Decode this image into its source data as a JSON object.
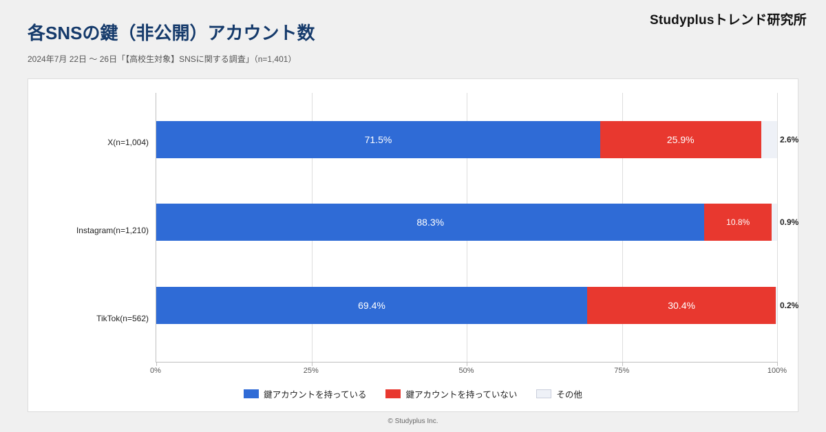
{
  "brand": "Studyplusトレンド研究所",
  "title": "各SNSの鍵（非公開）アカウント数",
  "subtitle": "2024年7月 22日 ～ 26日「【高校生対象】SNSに関する調査」（n=1,401）",
  "footer": "© Studyplus Inc.",
  "chart": {
    "type": "stacked-horizontal-bar",
    "background_color": "#ffffff",
    "grid_color": "#dddddd",
    "axis_color": "#bfbfbf",
    "xlim": [
      0,
      100
    ],
    "xtick_step": 25,
    "xticks": [
      {
        "pos": 0,
        "label": "0%"
      },
      {
        "pos": 25,
        "label": "25%"
      },
      {
        "pos": 50,
        "label": "50%"
      },
      {
        "pos": 75,
        "label": "75%"
      },
      {
        "pos": 100,
        "label": "100%"
      }
    ],
    "series_colors": {
      "has_locked": "#2f6bd6",
      "no_locked": "#e8382f",
      "other": "#eef1f7"
    },
    "rows": [
      {
        "label": "X(n=1,004)",
        "segments": [
          {
            "key": "has_locked",
            "value": 71.5,
            "text": "71.5%",
            "text_inside": true
          },
          {
            "key": "no_locked",
            "value": 25.9,
            "text": "25.9%",
            "text_inside": true
          },
          {
            "key": "other",
            "value": 2.6,
            "text": "2.6%",
            "text_inside": false
          }
        ]
      },
      {
        "label": "Instagram(n=1,210)",
        "segments": [
          {
            "key": "has_locked",
            "value": 88.3,
            "text": "88.3%",
            "text_inside": true
          },
          {
            "key": "no_locked",
            "value": 10.8,
            "text": "10.8%",
            "text_inside": true
          },
          {
            "key": "other",
            "value": 0.9,
            "text": "0.9%",
            "text_inside": false
          }
        ]
      },
      {
        "label": "TikTok(n=562)",
        "segments": [
          {
            "key": "has_locked",
            "value": 69.4,
            "text": "69.4%",
            "text_inside": true
          },
          {
            "key": "no_locked",
            "value": 30.4,
            "text": "30.4%",
            "text_inside": true
          },
          {
            "key": "other",
            "value": 0.2,
            "text": "0.2%",
            "text_inside": false
          }
        ]
      }
    ],
    "legend": [
      {
        "key": "has_locked",
        "label": "鍵アカウントを持っている"
      },
      {
        "key": "no_locked",
        "label": "鍵アカウントを持っていない"
      },
      {
        "key": "other",
        "label": "その他"
      }
    ]
  }
}
